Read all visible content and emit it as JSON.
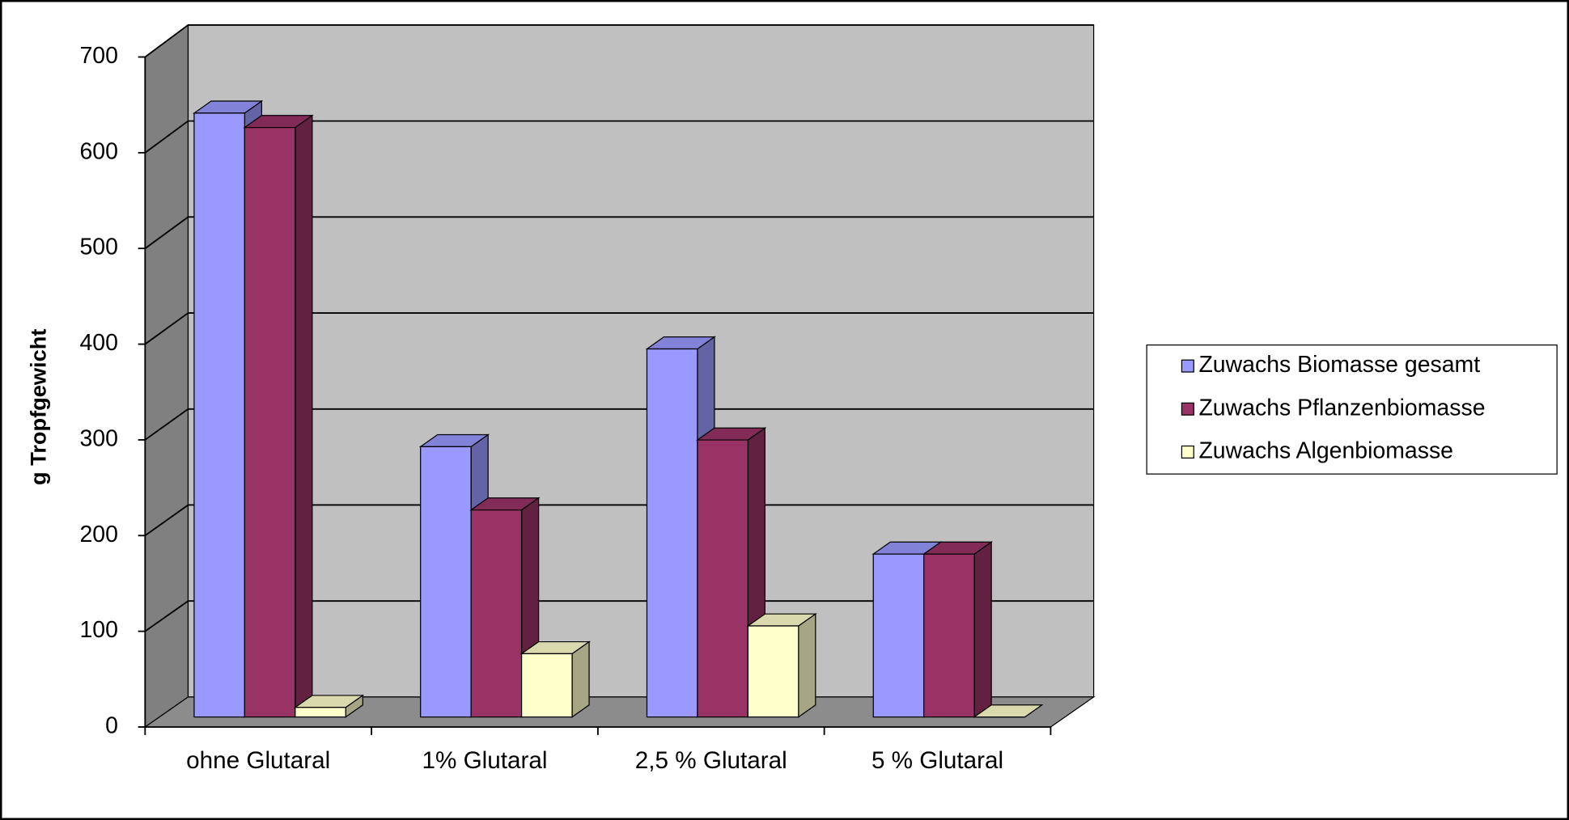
{
  "chart_data": {
    "type": "bar3d",
    "y_label": "g Tropfgewicht",
    "categories": [
      "ohne Glutaral",
      "1% Glutaral",
      "2,5 % Glutaral",
      "5 % Glutaral"
    ],
    "series": [
      {
        "name": "Zuwachs Biomasse gesamt",
        "color": "#9999ff",
        "values": [
          630,
          282,
          384,
          170
        ]
      },
      {
        "name": "Zuwachs Pflanzenbiomasse",
        "color": "#993366",
        "values": [
          615,
          216,
          289,
          170
        ]
      },
      {
        "name": "Zuwachs Algenbiomasse",
        "color": "#ffffcc",
        "values": [
          10,
          66,
          95,
          0
        ]
      }
    ],
    "ylim": [
      0,
      700
    ],
    "yticks": [
      0,
      100,
      200,
      300,
      400,
      500,
      600,
      700
    ],
    "grid": true,
    "legend": "right"
  }
}
